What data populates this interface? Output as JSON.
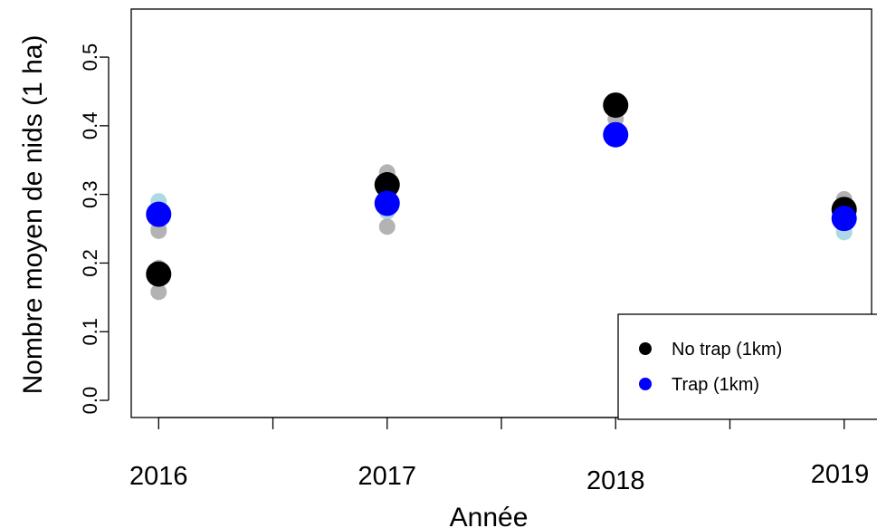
{
  "chart_data": {
    "type": "scatter",
    "title": "",
    "xlabel": "Année",
    "ylabel": "Nombre moyen de nids (1 ha)",
    "x_tick_labels": [
      {
        "x": 2016,
        "label": "2016"
      },
      {
        "x": 2017,
        "label": "2017"
      },
      {
        "x": 2018,
        "label": "2018"
      },
      {
        "x": 2019,
        "label": "2019"
      }
    ],
    "x_minor_ticks": [
      2016.5,
      2017.5,
      2018.5
    ],
    "xlim": [
      2015.88,
      2019.12
    ],
    "y_ticks": [
      0.0,
      0.1,
      0.2,
      0.3,
      0.4,
      0.5
    ],
    "y_tick_labels": [
      "0.0",
      "0.1",
      "0.2",
      "0.3",
      "0.4",
      "0.5"
    ],
    "ylim": [
      -0.025,
      0.57
    ],
    "grid": false,
    "legend_position": "bottom-right",
    "colors": {
      "no_trap": "#000000",
      "trap": "#0000ff",
      "no_trap_replicates": "#b3b3b3",
      "trap_replicates": "#add8e6"
    },
    "series": [
      {
        "name": "No trap (1km)",
        "color": "#000000",
        "x": [
          2016,
          2017,
          2018,
          2019
        ],
        "y": [
          0.184,
          0.314,
          0.43,
          0.278
        ]
      },
      {
        "name": "Trap (1km)",
        "color": "#0000ff",
        "x": [
          2016,
          2017,
          2018,
          2019
        ],
        "y": [
          0.271,
          0.287,
          0.387,
          0.265
        ]
      }
    ],
    "replicates": [
      {
        "color": "#add8e6",
        "points": [
          {
            "x": 2016,
            "y": 0.29
          },
          {
            "x": 2016,
            "y": 0.25
          },
          {
            "x": 2017,
            "y": 0.3
          },
          {
            "x": 2017,
            "y": 0.275
          },
          {
            "x": 2018,
            "y": 0.38
          },
          {
            "x": 2018,
            "y": 0.395
          },
          {
            "x": 2019,
            "y": 0.245
          },
          {
            "x": 2019,
            "y": 0.29
          }
        ]
      },
      {
        "color": "#b3b3b3",
        "points": [
          {
            "x": 2016,
            "y": 0.247
          },
          {
            "x": 2016,
            "y": 0.193
          },
          {
            "x": 2016,
            "y": 0.158
          },
          {
            "x": 2017,
            "y": 0.253
          },
          {
            "x": 2017,
            "y": 0.332
          },
          {
            "x": 2017,
            "y": 0.32
          },
          {
            "x": 2018,
            "y": 0.41
          },
          {
            "x": 2018,
            "y": 0.425
          },
          {
            "x": 2019,
            "y": 0.293
          },
          {
            "x": 2019,
            "y": 0.262
          }
        ]
      }
    ]
  }
}
